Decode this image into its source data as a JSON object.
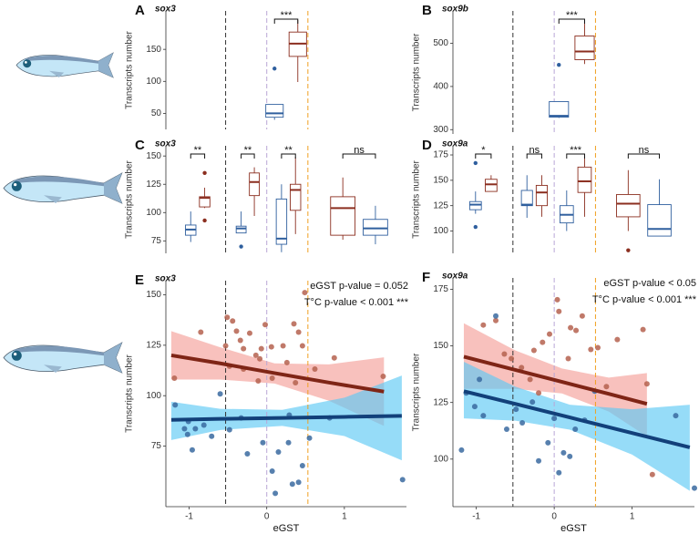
{
  "chart_data": [
    {
      "type": "box",
      "panel_label": "A",
      "gene": "sox3",
      "ylabel": "Transcripts number",
      "xlim": [
        -1.3,
        1.8
      ],
      "ylim": [
        25,
        210
      ],
      "yticks": [
        50,
        100,
        150
      ],
      "vlines": [
        {
          "value": -0.53,
          "color": "#333333"
        },
        {
          "value": 0,
          "color": "#b9a6d6"
        },
        {
          "value": 0.53,
          "color": "#f0a020"
        }
      ],
      "groups": [
        {
          "label": "***",
          "boxes": [
            {
              "color": "#2f5f9e",
              "x": 0.1,
              "whisker_low": 40,
              "q1": 44,
              "median": 50,
              "q3": 64,
              "whisker_high": 64,
              "outliers": [
                120
              ]
            },
            {
              "color": "#8b2e1f",
              "x": 0.4,
              "whisker_low": 99,
              "q1": 139,
              "median": 159,
              "q3": 177,
              "whisker_high": 196,
              "outliers": []
            }
          ]
        }
      ]
    },
    {
      "type": "box",
      "panel_label": "B",
      "gene": "sox9b",
      "ylabel": "Transcripts number",
      "xlim": [
        -1.3,
        1.8
      ],
      "ylim": [
        290,
        575
      ],
      "yticks": [
        300,
        400,
        500
      ],
      "vlines": [
        {
          "value": -0.53,
          "color": "#333333"
        },
        {
          "value": 0,
          "color": "#b9a6d6"
        },
        {
          "value": 0.53,
          "color": "#f0a020"
        }
      ],
      "groups": [
        {
          "label": "***",
          "boxes": [
            {
              "color": "#2f5f9e",
              "x": 0.06,
              "whisker_low": 327,
              "q1": 329,
              "median": 332,
              "q3": 365,
              "whisker_high": 365,
              "outliers": [
                450
              ]
            },
            {
              "color": "#8b2e1f",
              "x": 0.39,
              "whisker_low": 452,
              "q1": 462,
              "median": 481,
              "q3": 517,
              "whisker_high": 554,
              "outliers": []
            }
          ]
        }
      ]
    },
    {
      "type": "box",
      "panel_label": "C",
      "gene": "sox3",
      "ylabel": "Transcripts number",
      "xlim": [
        -1.3,
        1.8
      ],
      "ylim": [
        64,
        159
      ],
      "yticks": [
        75,
        100,
        125,
        150
      ],
      "vlines": [
        {
          "value": -0.53,
          "color": "#333333"
        },
        {
          "value": 0,
          "color": "#b9a6d6"
        },
        {
          "value": 0.53,
          "color": "#f0a020"
        }
      ],
      "groups": [
        {
          "label": "**",
          "boxes": [
            {
              "color": "#2f5f9e",
              "x": -0.98,
              "whisker_low": 74,
              "q1": 80,
              "median": 85,
              "q3": 89,
              "whisker_high": 101,
              "outliers": []
            },
            {
              "color": "#8b2e1f",
              "x": -0.8,
              "whisker_low": 104,
              "q1": 105,
              "median": 113,
              "q3": 114,
              "whisker_high": 122,
              "outliers": [
                135,
                93
              ]
            }
          ]
        },
        {
          "label": "**",
          "boxes": [
            {
              "color": "#2f5f9e",
              "x": -0.33,
              "whisker_low": 82,
              "q1": 82,
              "median": 86,
              "q3": 88,
              "whisker_high": 101,
              "outliers": [
                70
              ]
            },
            {
              "color": "#8b2e1f",
              "x": -0.16,
              "whisker_low": 97,
              "q1": 115,
              "median": 127,
              "q3": 135,
              "whisker_high": 140,
              "outliers": []
            }
          ]
        },
        {
          "label": "**",
          "boxes": [
            {
              "color": "#2f5f9e",
              "x": 0.19,
              "whisker_low": 65,
              "q1": 72,
              "median": 77,
              "q3": 112,
              "whisker_high": 125,
              "outliers": []
            },
            {
              "color": "#8b2e1f",
              "x": 0.37,
              "whisker_low": 81,
              "q1": 102,
              "median": 120,
              "q3": 125,
              "whisker_high": 149,
              "outliers": []
            }
          ]
        },
        {
          "label": "ns",
          "boxes": [
            {
              "color": "#8b2e1f",
              "x": 0.98,
              "whisker_low": 76,
              "q1": 80,
              "median": 104,
              "q3": 114,
              "whisker_high": 131,
              "outliers": []
            },
            {
              "color": "#2f5f9e",
              "x": 1.4,
              "whisker_low": 72,
              "q1": 80,
              "median": 86,
              "q3": 94,
              "whisker_high": 106,
              "outliers": []
            }
          ]
        }
      ]
    },
    {
      "type": "box",
      "panel_label": "D",
      "gene": "sox9a",
      "ylabel": "Transcripts number",
      "xlim": [
        -1.3,
        1.8
      ],
      "ylim": [
        78,
        184
      ],
      "yticks": [
        100,
        125,
        150,
        175
      ],
      "vlines": [
        {
          "value": -0.53,
          "color": "#333333"
        },
        {
          "value": 0,
          "color": "#b9a6d6"
        },
        {
          "value": 0.53,
          "color": "#f0a020"
        }
      ],
      "groups": [
        {
          "label": "*",
          "boxes": [
            {
              "color": "#2f5f9e",
              "x": -1.01,
              "whisker_low": 117,
              "q1": 121,
              "median": 126,
              "q3": 129,
              "whisker_high": 139,
              "outliers": [
                167,
                104
              ]
            },
            {
              "color": "#8b2e1f",
              "x": -0.81,
              "whisker_low": 139,
              "q1": 139,
              "median": 146,
              "q3": 151,
              "whisker_high": 155,
              "outliers": []
            }
          ]
        },
        {
          "label": "ns",
          "boxes": [
            {
              "color": "#2f5f9e",
              "x": -0.35,
              "whisker_low": 113,
              "q1": 125,
              "median": 126,
              "q3": 140,
              "whisker_high": 155,
              "outliers": []
            },
            {
              "color": "#8b2e1f",
              "x": -0.16,
              "whisker_low": 114,
              "q1": 125,
              "median": 138,
              "q3": 145,
              "whisker_high": 155,
              "outliers": []
            }
          ]
        },
        {
          "label": "***",
          "boxes": [
            {
              "color": "#2f5f9e",
              "x": 0.16,
              "whisker_low": 100,
              "q1": 108,
              "median": 116,
              "q3": 125,
              "whisker_high": 140,
              "outliers": []
            },
            {
              "color": "#8b2e1f",
              "x": 0.39,
              "whisker_low": 114,
              "q1": 138,
              "median": 149,
              "q3": 163,
              "whisker_high": 176,
              "outliers": []
            }
          ]
        },
        {
          "label": "ns",
          "boxes": [
            {
              "color": "#8b2e1f",
              "x": 0.95,
              "whisker_low": 100,
              "q1": 114,
              "median": 127,
              "q3": 136,
              "whisker_high": 160,
              "outliers": [
                81
              ]
            },
            {
              "color": "#2f5f9e",
              "x": 1.35,
              "whisker_low": 95,
              "q1": 95,
              "median": 102,
              "q3": 126,
              "whisker_high": 151,
              "outliers": []
            }
          ]
        }
      ]
    },
    {
      "type": "scatter",
      "panel_label": "E",
      "gene": "sox3",
      "ylabel": "Transcripts number",
      "xlabel": "eGST",
      "xlim": [
        -1.3,
        1.8
      ],
      "ylim": [
        45,
        157
      ],
      "xticks": [
        -1,
        0,
        1
      ],
      "yticks": [
        75,
        100,
        125,
        150
      ],
      "vlines": [
        {
          "value": -0.53,
          "color": "#333333"
        },
        {
          "value": 0,
          "color": "#b9a6d6"
        },
        {
          "value": 0.53,
          "color": "#f0a020"
        }
      ],
      "annotations": [
        "eGST p-value = 0.052",
        "T°C p-value < 0.001 ***"
      ],
      "series": [
        {
          "color": "#b5614f",
          "x": [
            -0.85,
            -0.51,
            -0.44,
            -0.39,
            -0.34,
            -0.22,
            -0.14,
            -0.07,
            0.06,
            -0.02,
            -0.3,
            -0.48,
            -0.3,
            -0.09,
            0.35,
            0.41,
            0.46,
            0.62,
            0.87,
            1.5,
            0.49,
            0.26,
            0.37,
            0.07,
            -0.53,
            0.21,
            -1.19,
            -0.11
          ],
          "values": [
            131.5,
            138.8,
            137,
            132,
            127.4,
            131,
            120,
            123.3,
            124.2,
            135.2,
            123.3,
            114.6,
            113.2,
            118.3,
            135.6,
            131.5,
            124.7,
            113.2,
            118.7,
            109.6,
            151.1,
            116.4,
            106.4,
            108.7,
            124.7,
            124.7,
            108.7,
            107.3
          ]
        },
        {
          "color": "#3a6aa0",
          "x": [
            -1.18,
            -1.06,
            -1.02,
            -0.96,
            -0.92,
            -0.81,
            -0.71,
            -0.48,
            -0.33,
            -0.25,
            -0.05,
            0.07,
            0.15,
            0.28,
            0.33,
            0.41,
            0.46,
            0.55,
            1.75,
            0.81,
            0.11,
            -0.6,
            -1.01,
            0.29
          ],
          "values": [
            95.4,
            83.6,
            80.8,
            73.1,
            83.6,
            85.4,
            79.9,
            83.1,
            89,
            71.2,
            76.7,
            62.6,
            72.1,
            76.7,
            56.2,
            57.1,
            65.3,
            79,
            58.4,
            89,
            51.6,
            100.9,
            87.2,
            90.4
          ]
        }
      ],
      "fits": [
        {
          "color": "#7f2516",
          "band_color": "#f4a09a",
          "x": [
            -1.23,
            -0.6,
            0.1,
            0.8,
            1.51
          ],
          "fit": [
            120,
            116,
            111.2,
            106.5,
            102
          ],
          "upper": [
            132,
            124,
            116,
            115.5,
            119
          ],
          "lower": [
            108,
            108,
            106,
            97.5,
            85
          ]
        },
        {
          "color": "#12407a",
          "band_color": "#5ec9f5",
          "x": [
            -1.23,
            -0.6,
            0.2,
            1.0,
            1.74
          ],
          "fit": [
            88,
            88.5,
            89,
            89.5,
            90
          ],
          "upper": [
            97,
            93.5,
            93,
            99,
            110
          ],
          "lower": [
            78,
            83,
            85,
            80,
            68
          ]
        }
      ]
    },
    {
      "type": "scatter",
      "panel_label": "F",
      "gene": "sox9a",
      "ylabel": "Transcripts number",
      "xlabel": "eGST",
      "xlim": [
        -1.3,
        1.8
      ],
      "ylim": [
        79,
        180
      ],
      "xticks": [
        -1,
        0,
        1
      ],
      "yticks": [
        100,
        125,
        150,
        175
      ],
      "vlines": [
        {
          "value": -0.53,
          "color": "#333333"
        },
        {
          "value": 0,
          "color": "#b9a6d6"
        },
        {
          "value": 0.53,
          "color": "#f0a020"
        }
      ],
      "annotations": [
        "eGST p-value < 0.05",
        "T°C p-value < 0.001 ***"
      ],
      "series": [
        {
          "color": "#b5614f",
          "x": [
            -0.91,
            -0.75,
            -0.64,
            -0.55,
            -0.42,
            -0.26,
            -0.15,
            0.04,
            0.06,
            0.18,
            0.21,
            0.28,
            0.36,
            0.47,
            0.56,
            0.67,
            0.81,
            1.14,
            1.19,
            1.26,
            -0.2,
            -0.06,
            -0.31
          ],
          "values": [
            159.2,
            161.2,
            146.4,
            144.4,
            140.4,
            148,
            151.6,
            170.4,
            165.2,
            144.4,
            158,
            156.8,
            163.2,
            148.4,
            149.2,
            132,
            152.8,
            157.2,
            133.2,
            93.2,
            129.2,
            155.2,
            135.2
          ]
        },
        {
          "color": "#3a6aa0",
          "x": [
            -1.19,
            -1.13,
            -1.02,
            -0.96,
            -0.91,
            -0.75,
            -0.61,
            -0.49,
            -0.41,
            -0.28,
            -0.2,
            -0.08,
            0,
            0.12,
            0.2,
            0.27,
            0.39,
            0.52,
            1.8,
            1.56,
            0.06
          ],
          "values": [
            104,
            129.2,
            123.2,
            135.2,
            119.2,
            163.2,
            113.2,
            122,
            116,
            125.2,
            99.2,
            107.2,
            118,
            102.8,
            101.2,
            113.2,
            117.2,
            130,
            87.2,
            119.2,
            94
          ]
        }
      ],
      "fits": [
        {
          "color": "#7f2516",
          "band_color": "#f4a09a",
          "x": [
            -1.16,
            -0.5,
            0.1,
            0.7,
            1.19
          ],
          "fit": [
            145.2,
            139.4,
            134.1,
            128.8,
            124.4
          ],
          "upper": [
            160,
            148,
            140,
            136,
            138
          ],
          "lower": [
            131,
            131,
            129,
            121,
            110
          ]
        },
        {
          "color": "#12407a",
          "band_color": "#5ec9f5",
          "x": [
            -1.16,
            -0.5,
            0.2,
            1.0,
            1.74
          ],
          "fit": [
            130,
            124.4,
            118.4,
            111.5,
            105.2
          ],
          "upper": [
            143,
            132,
            124,
            122,
            124
          ],
          "lower": [
            118,
            117,
            113,
            102,
            86
          ]
        }
      ]
    }
  ]
}
